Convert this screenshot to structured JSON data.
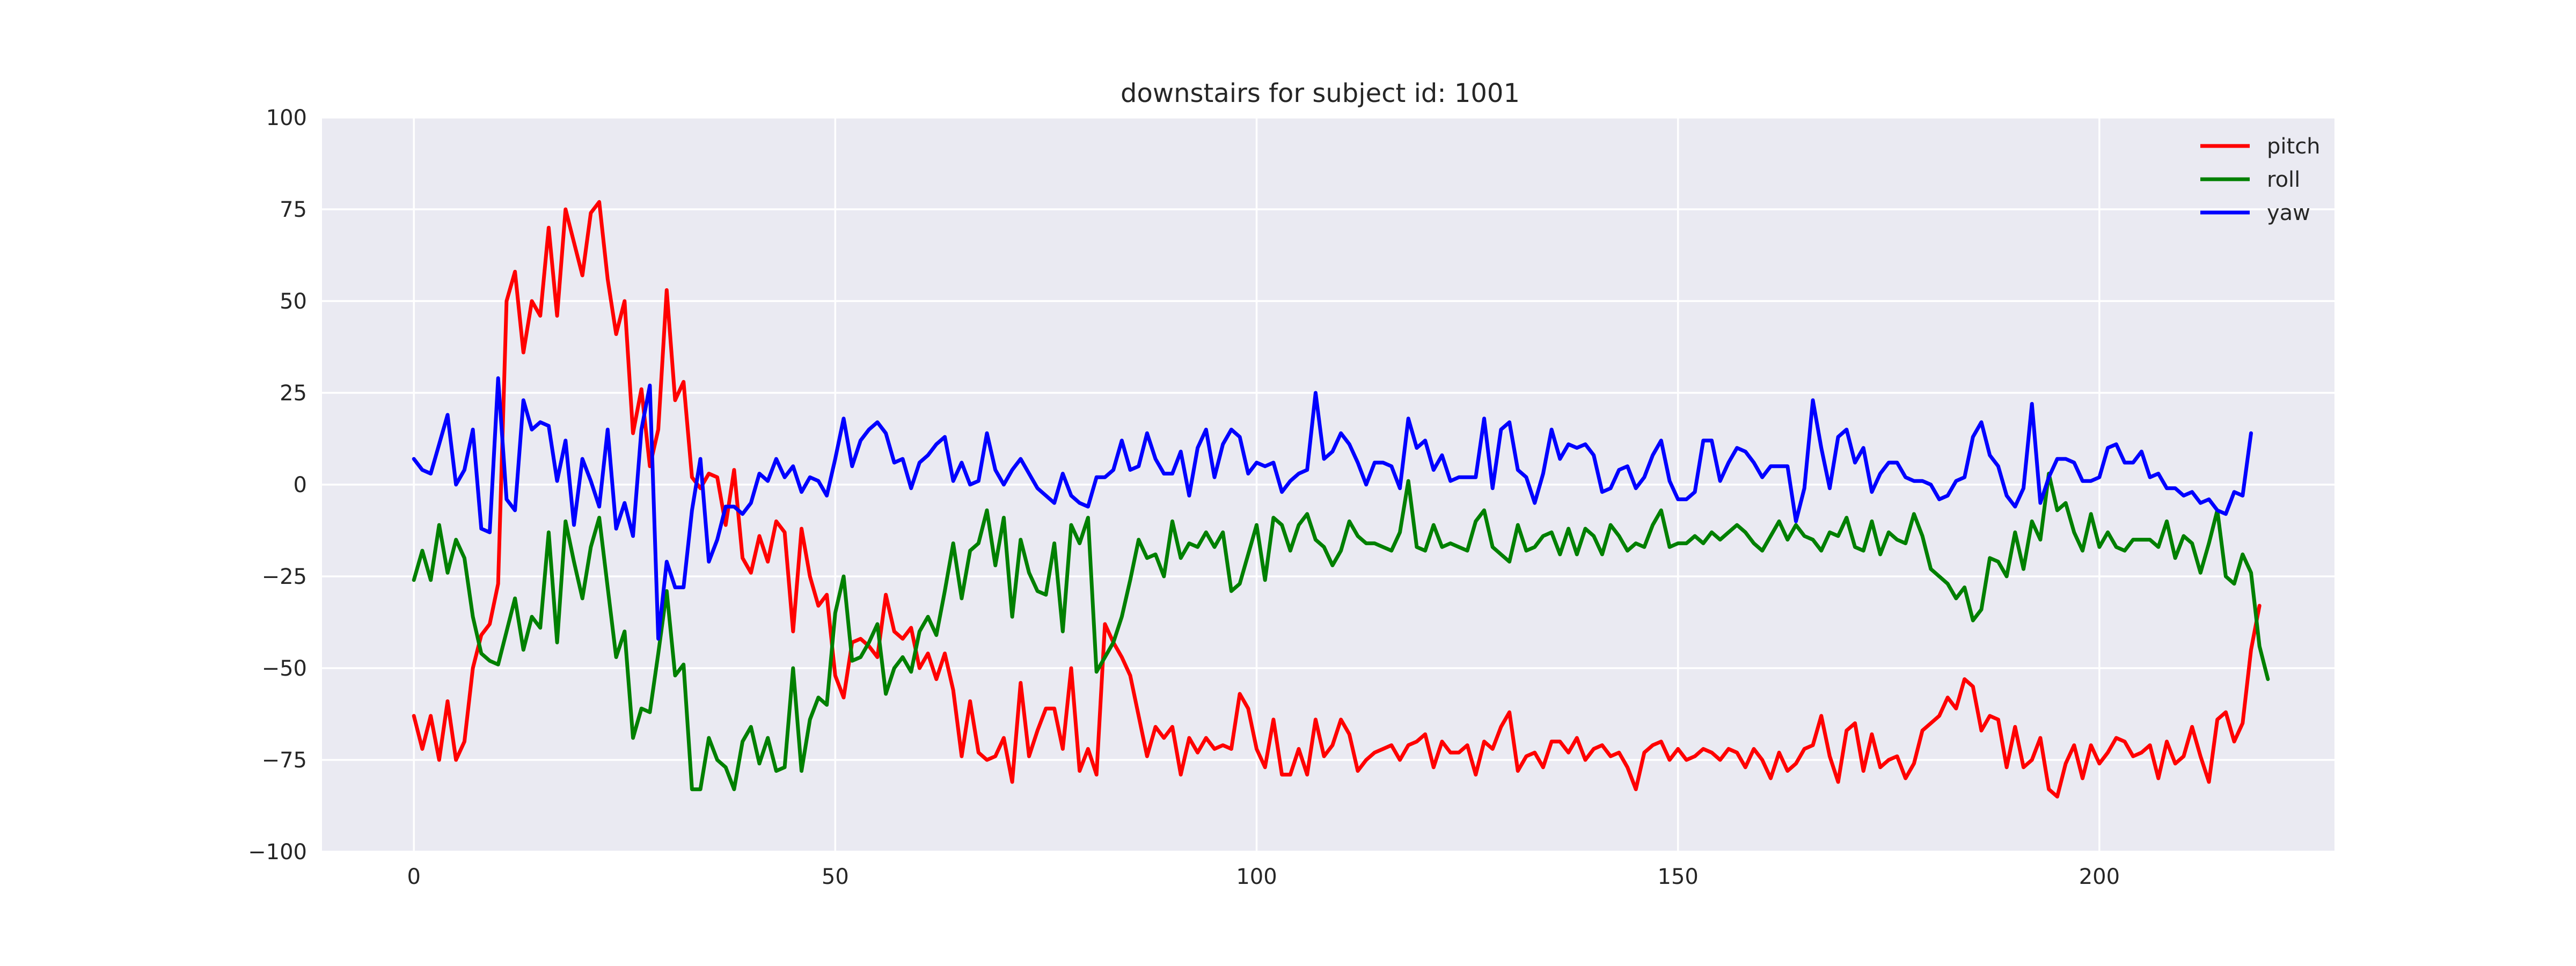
{
  "chart_data": {
    "type": "line",
    "title": "downstairs for subject id: 1001",
    "xlabel": "",
    "ylabel": "",
    "xlim": [
      -10.9,
      227.9
    ],
    "ylim": [
      -100,
      100
    ],
    "xticks": [
      0,
      50,
      100,
      150,
      200
    ],
    "yticks": [
      -100,
      -75,
      -50,
      -25,
      0,
      25,
      50,
      75,
      100
    ],
    "grid": true,
    "legend_position": "top-right",
    "background": "#eaeaf2",
    "series": [
      {
        "name": "pitch",
        "color": "#ff0000",
        "values": [
          -63,
          -72,
          -63,
          -75,
          -59,
          -75,
          -70,
          -50,
          -41,
          -38,
          -27,
          50,
          58,
          36,
          50,
          46,
          70,
          46,
          75,
          66,
          57,
          74,
          77,
          56,
          41,
          50,
          14,
          26,
          5,
          15,
          53,
          23,
          28,
          2,
          -1,
          3,
          2,
          -11,
          4,
          -20,
          -24,
          -14,
          -21,
          -10,
          -13,
          -40,
          -12,
          -25,
          -33,
          -30,
          -52,
          -58,
          -43,
          -42,
          -44,
          -47,
          -30,
          -40,
          -42,
          -39,
          -50,
          -46,
          -53,
          -46,
          -56,
          -74,
          -59,
          -73,
          -75,
          -74,
          -69,
          -81,
          -54,
          -74,
          -67,
          -61,
          -61,
          -72,
          -50,
          -78,
          -72,
          -79,
          -38,
          -43,
          -47,
          -52,
          -63,
          -74,
          -66,
          -69,
          -66,
          -79,
          -69,
          -73,
          -69,
          -72,
          -71,
          -72,
          -57,
          -61,
          -72,
          -77,
          -64,
          -79,
          -79,
          -72,
          -79,
          -64,
          -74,
          -71,
          -64,
          -68,
          -78,
          -75,
          -73,
          -72,
          -71,
          -75,
          -71,
          -70,
          -68,
          -77,
          -70,
          -73,
          -73,
          -71,
          -79,
          -70,
          -72,
          -66,
          -62,
          -78,
          -74,
          -73,
          -77,
          -70,
          -70,
          -73,
          -69,
          -75,
          -72,
          -71,
          -74,
          -73,
          -77,
          -83,
          -73,
          -71,
          -70,
          -75,
          -72,
          -75,
          -74,
          -72,
          -73,
          -75,
          -72,
          -73,
          -77,
          -72,
          -75,
          -80,
          -73,
          -78,
          -76,
          -72,
          -71,
          -63,
          -74,
          -81,
          -67,
          -65,
          -78,
          -68,
          -77,
          -75,
          -74,
          -80,
          -76,
          -67,
          -65,
          -63,
          -58,
          -61,
          -53,
          -55,
          -67,
          -63,
          -64,
          -77,
          -66,
          -77,
          -75,
          -69,
          -83,
          -85,
          -76,
          -71,
          -80,
          -71,
          -76,
          -73,
          -69,
          -70,
          -74,
          -73,
          -71,
          -80,
          -70,
          -76,
          -74,
          -66,
          -74,
          -81,
          -64,
          -62,
          -70,
          -65,
          -45,
          -33
        ]
      },
      {
        "name": "roll",
        "color": "#008000",
        "values": [
          -26,
          -18,
          -26,
          -11,
          -24,
          -15,
          -20,
          -36,
          -46,
          -48,
          -49,
          -40,
          -31,
          -45,
          -36,
          -39,
          -13,
          -43,
          -10,
          -21,
          -31,
          -17,
          -9,
          -28,
          -47,
          -40,
          -69,
          -61,
          -62,
          -46,
          -29,
          -52,
          -49,
          -83,
          -83,
          -69,
          -75,
          -77,
          -83,
          -70,
          -66,
          -76,
          -69,
          -78,
          -77,
          -50,
          -78,
          -64,
          -58,
          -60,
          -35,
          -25,
          -48,
          -47,
          -43,
          -38,
          -57,
          -50,
          -47,
          -51,
          -40,
          -36,
          -41,
          -29,
          -16,
          -31,
          -18,
          -16,
          -7,
          -22,
          -9,
          -36,
          -15,
          -24,
          -29,
          -30,
          -16,
          -40,
          -11,
          -16,
          -9,
          -51,
          -47,
          -43,
          -36,
          -26,
          -15,
          -20,
          -19,
          -25,
          -10,
          -20,
          -16,
          -17,
          -13,
          -17,
          -13,
          -29,
          -27,
          -19,
          -11,
          -26,
          -9,
          -11,
          -18,
          -11,
          -8,
          -15,
          -17,
          -22,
          -18,
          -10,
          -14,
          -16,
          -16,
          -17,
          -18,
          -13,
          1,
          -17,
          -18,
          -11,
          -17,
          -16,
          -17,
          -18,
          -10,
          -7,
          -17,
          -19,
          -21,
          -11,
          -18,
          -17,
          -14,
          -13,
          -19,
          -12,
          -19,
          -12,
          -14,
          -19,
          -11,
          -14,
          -18,
          -16,
          -17,
          -11,
          -7,
          -17,
          -16,
          -16,
          -14,
          -16,
          -13,
          -15,
          -13,
          -11,
          -13,
          -16,
          -18,
          -14,
          -10,
          -15,
          -11,
          -14,
          -15,
          -18,
          -13,
          -14,
          -9,
          -17,
          -18,
          -10,
          -19,
          -13,
          -15,
          -16,
          -8,
          -14,
          -23,
          -25,
          -27,
          -31,
          -28,
          -37,
          -34,
          -20,
          -21,
          -25,
          -13,
          -23,
          -10,
          -15,
          3,
          -7,
          -5,
          -13,
          -18,
          -8,
          -17,
          -13,
          -17,
          -18,
          -15,
          -15,
          -15,
          -17,
          -10,
          -20,
          -14,
          -16,
          -24,
          -16,
          -7,
          -25,
          -27,
          -19,
          -24,
          -44,
          -53
        ]
      },
      {
        "name": "yaw",
        "color": "#0000ff",
        "values": [
          7,
          4,
          3,
          11,
          19,
          0,
          4,
          15,
          -12,
          -13,
          29,
          -4,
          -7,
          23,
          15,
          17,
          16,
          1,
          12,
          -11,
          7,
          1,
          -6,
          15,
          -12,
          -5,
          -14,
          15,
          27,
          -42,
          -21,
          -28,
          -28,
          -7,
          7,
          -21,
          -15,
          -6,
          -6,
          -8,
          -5,
          3,
          1,
          7,
          2,
          5,
          -2,
          2,
          1,
          -3,
          7,
          18,
          5,
          12,
          15,
          17,
          14,
          6,
          7,
          -1,
          6,
          8,
          11,
          13,
          1,
          6,
          0,
          1,
          14,
          4,
          0,
          4,
          7,
          3,
          -1,
          -3,
          -5,
          3,
          -3,
          -5,
          -6,
          2,
          2,
          4,
          12,
          4,
          5,
          14,
          7,
          3,
          3,
          9,
          -3,
          10,
          15,
          2,
          11,
          15,
          13,
          3,
          6,
          5,
          6,
          -2,
          1,
          3,
          4,
          25,
          7,
          9,
          14,
          11,
          6,
          0,
          6,
          6,
          5,
          -1,
          18,
          10,
          12,
          4,
          8,
          1,
          2,
          2,
          2,
          18,
          -1,
          15,
          17,
          4,
          2,
          -5,
          3,
          15,
          7,
          11,
          10,
          11,
          8,
          -2,
          -1,
          4,
          5,
          -1,
          2,
          8,
          12,
          1,
          -4,
          -4,
          -2,
          12,
          12,
          1,
          6,
          10,
          9,
          6,
          2,
          5,
          5,
          5,
          -10,
          -1,
          23,
          10,
          -1,
          13,
          15,
          6,
          10,
          -2,
          3,
          6,
          6,
          2,
          1,
          1,
          0,
          -4,
          -3,
          1,
          2,
          13,
          17,
          8,
          5,
          -3,
          -6,
          -1,
          22,
          -5,
          2,
          7,
          7,
          6,
          1,
          1,
          2,
          10,
          11,
          6,
          6,
          9,
          2,
          3,
          -1,
          -1,
          -3,
          -2,
          -5,
          -4,
          -7,
          -8,
          -2,
          -3,
          14
        ]
      }
    ]
  }
}
